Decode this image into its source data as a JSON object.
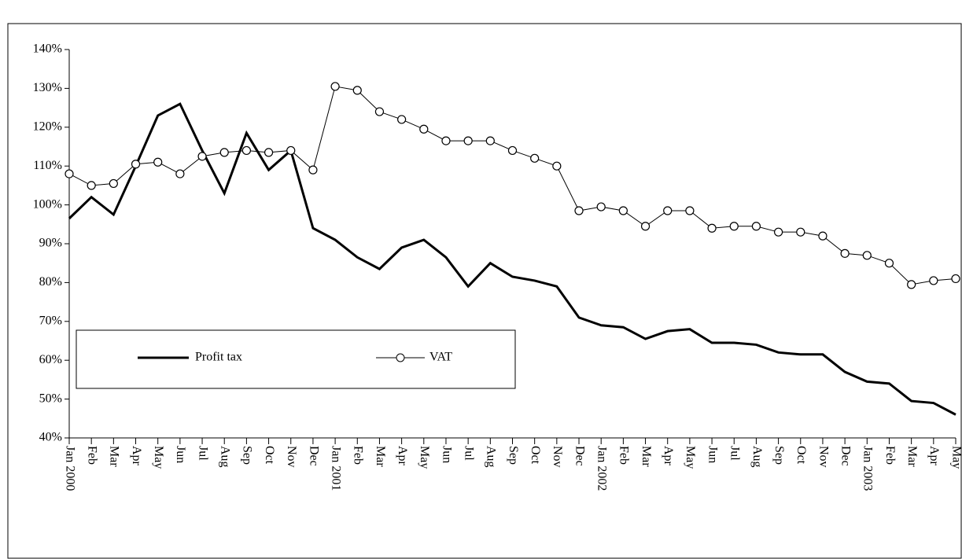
{
  "chart_data": {
    "type": "line",
    "categories": [
      "Jan 2000",
      "Feb",
      "Mar",
      "Apr",
      "May",
      "Jun",
      "Jul",
      "Aug",
      "Sep",
      "Oct",
      "Nov",
      "Dec",
      "Jan 2001",
      "Feb",
      "Mar",
      "Apr",
      "May",
      "Jun",
      "Jul",
      "Aug",
      "Sep",
      "Oct",
      "Nov",
      "Dec",
      "Jan 2002",
      "Feb",
      "Mar",
      "Apr",
      "May",
      "Jun",
      "Jul",
      "Aug",
      "Sep",
      "Oct",
      "Nov",
      "Dec",
      "Jan 2003",
      "Feb",
      "Mar",
      "Apr",
      "May"
    ],
    "series": [
      {
        "name": "Profit tax",
        "color": "#000000",
        "marker": "none",
        "values": [
          96.5,
          102,
          97.5,
          110,
          123,
          126,
          114,
          103,
          118.5,
          109,
          114,
          94,
          91,
          86.5,
          83.5,
          89,
          91,
          86.5,
          79,
          85,
          81.5,
          80.5,
          79,
          71,
          69,
          68.5,
          65.5,
          67.5,
          68,
          64.5,
          64.5,
          64,
          62,
          61.5,
          61.5,
          57,
          54.5,
          54,
          49.5,
          49,
          46
        ]
      },
      {
        "name": "VAT",
        "color": "#000000",
        "marker": "circle",
        "values": [
          108,
          105,
          105.5,
          110.5,
          111,
          108,
          112.5,
          113.5,
          114,
          113.5,
          114,
          109,
          130.5,
          129.5,
          124,
          122,
          119.5,
          116.5,
          116.5,
          116.5,
          114,
          112,
          110,
          98.5,
          99.5,
          98.5,
          94.5,
          98.5,
          98.5,
          94,
          94.5,
          94.5,
          93,
          93,
          92,
          87.5,
          87,
          85,
          79.5,
          80.5,
          81
        ]
      }
    ],
    "ylim": [
      40,
      140
    ],
    "yticks": [
      {
        "value": 40,
        "label": "40%"
      },
      {
        "value": 50,
        "label": "50%"
      },
      {
        "value": 60,
        "label": "60%"
      },
      {
        "value": 70,
        "label": "70%"
      },
      {
        "value": 80,
        "label": "80%"
      },
      {
        "value": 90,
        "label": "90%"
      },
      {
        "value": 100,
        "label": "100%"
      },
      {
        "value": 110,
        "label": "110%"
      },
      {
        "value": 120,
        "label": "120%"
      },
      {
        "value": 130,
        "label": "130%"
      },
      {
        "value": 140,
        "label": "140%"
      }
    ],
    "grid": false
  }
}
